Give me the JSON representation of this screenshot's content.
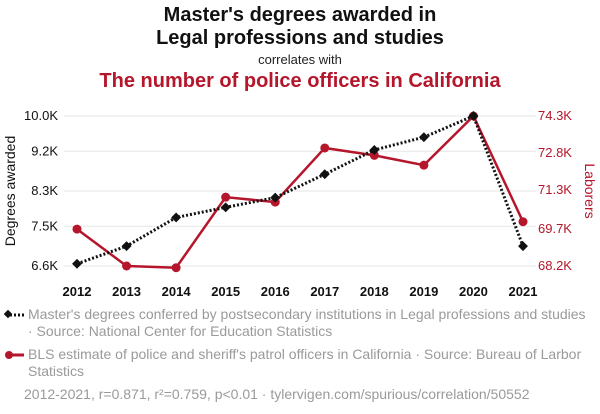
{
  "header": {
    "title_line1": "Master's degrees awarded in",
    "title_line2": "Legal professions and studies",
    "correlates": "correlates with",
    "title2": "The number of police officers in California"
  },
  "colors": {
    "series1": "#111111",
    "series2": "#b5162b",
    "grid": "#e6e6e6",
    "muted": "#9a9a9a"
  },
  "chart_data": {
    "type": "line",
    "x": [
      2012,
      2013,
      2014,
      2015,
      2016,
      2017,
      2018,
      2019,
      2020,
      2021
    ],
    "xlabels": [
      "2012",
      "2013",
      "2014",
      "2015",
      "2016",
      "2017",
      "2018",
      "2019",
      "2020",
      "2021"
    ],
    "series": [
      {
        "name": "Master's degrees conferred by postsecondary institutions in Legal professions and studies",
        "axis": "left",
        "style": "dotted",
        "marker": "diamond",
        "values": [
          6650,
          7050,
          7700,
          7930,
          8150,
          8680,
          9230,
          9520,
          10000,
          7050
        ]
      },
      {
        "name": "BLS estimate of police and sheriff's patrol officers in California",
        "axis": "right",
        "style": "solid",
        "marker": "circle",
        "values": [
          69700,
          68200,
          68130,
          71000,
          70800,
          73000,
          72700,
          72300,
          74300,
          70000
        ]
      }
    ],
    "y_left": {
      "label": "Degrees awarded",
      "range": [
        6600,
        10000
      ],
      "ticks": [
        6600,
        7500,
        8300,
        9200,
        10000
      ],
      "tick_labels": [
        "6.6K",
        "7.5K",
        "8.3K",
        "9.2K",
        "10.0K"
      ]
    },
    "y_right": {
      "label": "Laborers",
      "range": [
        68200,
        74300
      ],
      "ticks": [
        68200,
        69700,
        71300,
        72800,
        74300
      ],
      "tick_labels": [
        "68.2K",
        "69.7K",
        "71.3K",
        "72.8K",
        "74.3K"
      ]
    },
    "grid": "horizontal"
  },
  "legend": {
    "item1": "Master's degrees conferred by postsecondary institutions in Legal professions and studies · Source: National Center for Education Statistics",
    "item2": "BLS estimate of police and sheriff's patrol officers in California · Source: Bureau of Larbor Statistics"
  },
  "footer": {
    "text": "2012-2021, r=0.871, r²=0.759, p<0.01 · tylervigen.com/spurious/correlation/50552"
  }
}
